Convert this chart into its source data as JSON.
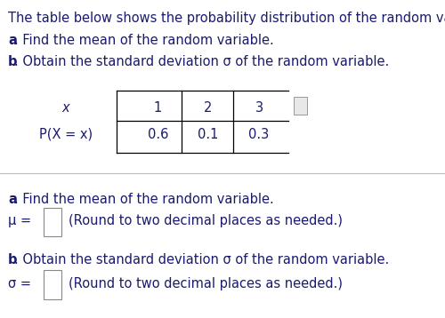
{
  "bg_color": "#ffffff",
  "text_color": "#1a1a6e",
  "intro_line1": "The table below shows the probability distribution of the random variable X.",
  "intro_line2_bold": "a",
  "intro_line2_rest": ". Find the mean of the random variable.",
  "intro_line3_bold": "b",
  "intro_line3_rest": ". Obtain the standard deviation σ of the random variable.",
  "table_x_values": [
    "1",
    "2",
    "3"
  ],
  "table_p_values": [
    "0.6",
    "0.1",
    "0.3"
  ],
  "part_a_bold": "a",
  "part_a_rest": ". Find the mean of the random variable.",
  "mu_text": "μ = ",
  "mu_suffix": "(Round to two decimal places as needed.)",
  "part_b_bold": "b",
  "part_b_rest": ". Obtain the standard deviation σ of the random variable.",
  "sigma_text": "σ = ",
  "sigma_suffix": "(Round to two decimal places as needed.)",
  "fontsize": 10.5
}
